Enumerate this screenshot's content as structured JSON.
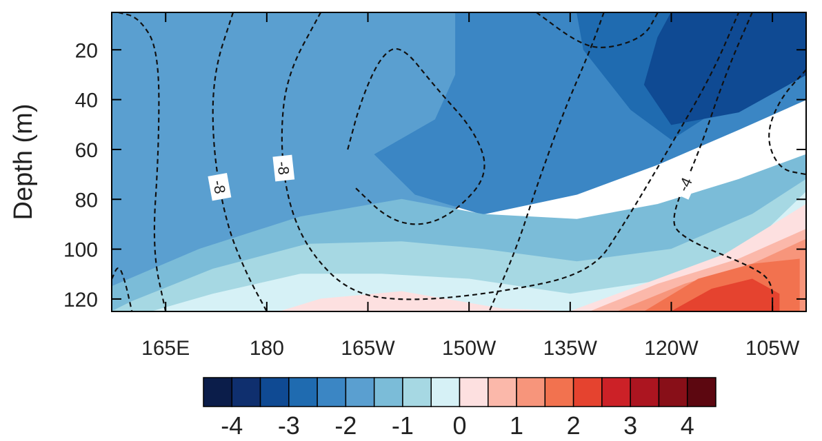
{
  "chart_data": {
    "type": "heatmap",
    "subtype": "filled-contour depth-longitude section with overlaid dashed contours",
    "ylabel": "Depth (m)",
    "xlabel": "",
    "x_range_deg_east": [
      157,
      260
    ],
    "y_range_m": [
      5,
      125
    ],
    "y_inverted": true,
    "x_ticks": [
      {
        "value": 165,
        "label": "165E"
      },
      {
        "value": 180,
        "label": "180"
      },
      {
        "value": 195,
        "label": "165W"
      },
      {
        "value": 210,
        "label": "150W"
      },
      {
        "value": 225,
        "label": "135W"
      },
      {
        "value": 240,
        "label": "120W"
      },
      {
        "value": 255,
        "label": "105W"
      }
    ],
    "y_ticks": [
      {
        "value": 20,
        "label": "20"
      },
      {
        "value": 40,
        "label": "40"
      },
      {
        "value": 60,
        "label": "60"
      },
      {
        "value": 80,
        "label": "80"
      },
      {
        "value": 100,
        "label": "100"
      },
      {
        "value": 120,
        "label": "120"
      }
    ],
    "colorbar": {
      "levels": [
        -4.5,
        -4,
        -3.5,
        -3,
        -2.5,
        -2,
        -1.5,
        -1,
        -0.5,
        0,
        0.5,
        1,
        1.5,
        2,
        2.5,
        3,
        3.5,
        4,
        4.5
      ],
      "colors": [
        "#0b1d4a",
        "#0f2f6e",
        "#0f4a93",
        "#1f6bb0",
        "#3b86c4",
        "#5a9fd0",
        "#7bbcd8",
        "#a6d8e3",
        "#d6f1f6",
        "#fde0e0",
        "#fbb8aa",
        "#f7957b",
        "#f2724f",
        "#e5432f",
        "#cc2127",
        "#ac1520",
        "#880f18",
        "#5c0710"
      ],
      "labels": [
        {
          "value": -4,
          "label": "-4"
        },
        {
          "value": -3,
          "label": "-3"
        },
        {
          "value": -2,
          "label": "-2"
        },
        {
          "value": -1,
          "label": "-1"
        },
        {
          "value": 0,
          "label": "0"
        },
        {
          "value": 1,
          "label": "1"
        },
        {
          "value": 2,
          "label": "2"
        },
        {
          "value": 3,
          "label": "3"
        },
        {
          "value": 4,
          "label": "4"
        }
      ]
    },
    "filled_regions": [
      {
        "value": -1.75,
        "description": "background west",
        "points": [
          [
            157,
            5
          ],
          [
            208,
            5
          ],
          [
            208,
            125
          ],
          [
            157,
            125
          ]
        ]
      },
      {
        "value": -2.25,
        "points": [
          [
            208,
            5
          ],
          [
            260,
            5
          ],
          [
            260,
            40
          ],
          [
            250,
            52
          ],
          [
            238,
            66
          ],
          [
            226,
            78
          ],
          [
            212,
            86
          ],
          [
            202,
            78
          ],
          [
            196,
            62
          ],
          [
            205,
            48
          ],
          [
            208,
            30
          ]
        ]
      },
      {
        "value": -2.75,
        "points": [
          [
            226,
            5
          ],
          [
            260,
            5
          ],
          [
            260,
            30
          ],
          [
            248,
            42
          ],
          [
            240,
            56
          ],
          [
            234,
            44
          ],
          [
            227,
            20
          ]
        ]
      },
      {
        "value": -3.25,
        "points": [
          [
            240,
            5
          ],
          [
            260,
            5
          ],
          [
            260,
            30
          ],
          [
            250,
            45
          ],
          [
            240,
            50
          ],
          [
            236,
            34
          ],
          [
            238,
            15
          ]
        ]
      },
      {
        "value": -1.25,
        "points": [
          [
            157,
            125
          ],
          [
            157,
            115
          ],
          [
            170,
            100
          ],
          [
            185,
            87
          ],
          [
            200,
            80
          ],
          [
            212,
            86
          ],
          [
            226,
            88
          ],
          [
            238,
            82
          ],
          [
            250,
            72
          ],
          [
            260,
            62
          ],
          [
            260,
            125
          ]
        ]
      },
      {
        "value": -0.75,
        "points": [
          [
            157,
            125
          ],
          [
            160,
            121
          ],
          [
            172,
            108
          ],
          [
            186,
            98
          ],
          [
            200,
            97
          ],
          [
            212,
            100
          ],
          [
            226,
            105
          ],
          [
            240,
            100
          ],
          [
            252,
            86
          ],
          [
            260,
            72
          ],
          [
            260,
            125
          ]
        ]
      },
      {
        "value": -0.25,
        "points": [
          [
            163,
            125
          ],
          [
            172,
            118
          ],
          [
            185,
            110
          ],
          [
            197,
            110
          ],
          [
            210,
            112
          ],
          [
            225,
            118
          ],
          [
            240,
            112
          ],
          [
            252,
            98
          ],
          [
            260,
            77
          ],
          [
            260,
            125
          ]
        ]
      },
      {
        "value": 0.25,
        "points": [
          [
            182,
            125
          ],
          [
            188,
            120
          ],
          [
            200,
            117
          ],
          [
            215,
            124
          ],
          [
            225,
            125
          ]
        ]
      },
      {
        "value": 0.25,
        "points": [
          [
            225,
            125
          ],
          [
            236,
            114
          ],
          [
            248,
            102
          ],
          [
            260,
            82
          ],
          [
            260,
            125
          ]
        ]
      },
      {
        "value": 0.75,
        "points": [
          [
            228,
            125
          ],
          [
            238,
            114
          ],
          [
            250,
            104
          ],
          [
            260,
            92
          ],
          [
            260,
            125
          ]
        ]
      },
      {
        "value": 1.25,
        "points": [
          [
            232,
            125
          ],
          [
            242,
            114
          ],
          [
            252,
            106
          ],
          [
            260,
            96
          ],
          [
            260,
            125
          ]
        ]
      },
      {
        "value": 1.75,
        "points": [
          [
            236,
            125
          ],
          [
            244,
            112
          ],
          [
            252,
            106
          ],
          [
            259,
            104
          ],
          [
            259,
            125
          ]
        ]
      },
      {
        "value": 2.25,
        "points": [
          [
            240,
            125
          ],
          [
            246,
            116
          ],
          [
            252,
            112
          ],
          [
            256,
            118
          ],
          [
            256,
            125
          ]
        ]
      }
    ],
    "contour_lines": [
      {
        "label": "-8",
        "points": [
          [
            175,
            5
          ],
          [
            172,
            30
          ],
          [
            172,
            60
          ],
          [
            174,
            90
          ],
          [
            177,
            110
          ],
          [
            180,
            125
          ]
        ]
      },
      {
        "label": "-8",
        "points": [
          [
            188,
            5
          ],
          [
            183,
            30
          ],
          [
            182,
            55
          ],
          [
            183,
            80
          ],
          [
            186,
            100
          ],
          [
            192,
            117
          ],
          [
            200,
            121
          ],
          [
            213,
            118
          ],
          [
            228,
            110
          ],
          [
            233,
            90
          ],
          [
            240,
            58
          ],
          [
            246,
            30
          ],
          [
            250,
            5
          ]
        ]
      },
      {
        "label": "",
        "points": [
          [
            192,
            60
          ],
          [
            194,
            40
          ],
          [
            197,
            22
          ],
          [
            200,
            18
          ],
          [
            205,
            35
          ],
          [
            211,
            53
          ],
          [
            213,
            70
          ],
          [
            208,
            85
          ],
          [
            203,
            91
          ],
          [
            198,
            88
          ],
          [
            193,
            75
          ]
        ]
      },
      {
        "label": "-4",
        "points": [
          [
            252,
            5
          ],
          [
            248,
            30
          ],
          [
            244,
            62
          ],
          [
            240,
            86
          ],
          [
            241,
            95
          ],
          [
            252,
            107
          ],
          [
            255,
            113
          ],
          [
            255,
            125
          ]
        ]
      },
      {
        "label": "",
        "points": [
          [
            230,
            5
          ],
          [
            228,
            20
          ],
          [
            224,
            45
          ],
          [
            220,
            75
          ],
          [
            217,
            100
          ],
          [
            213,
            125
          ]
        ]
      },
      {
        "label": "",
        "points": [
          [
            220,
            5
          ],
          [
            226,
            17
          ],
          [
            230,
            20
          ],
          [
            236,
            15
          ],
          [
            238,
            5
          ]
        ]
      },
      {
        "label": "",
        "points": [
          [
            260,
            28
          ],
          [
            256,
            40
          ],
          [
            254,
            55
          ],
          [
            256,
            68
          ],
          [
            260,
            70
          ]
        ]
      },
      {
        "label": "",
        "points": [
          [
            158,
            5
          ],
          [
            161,
            7
          ],
          [
            164,
            20
          ],
          [
            164,
            60
          ],
          [
            163,
            100
          ],
          [
            165,
            125
          ]
        ]
      },
      {
        "label": "",
        "points": [
          [
            157,
            112
          ],
          [
            158,
            106
          ],
          [
            159,
            113
          ],
          [
            160,
            125
          ]
        ]
      }
    ]
  }
}
